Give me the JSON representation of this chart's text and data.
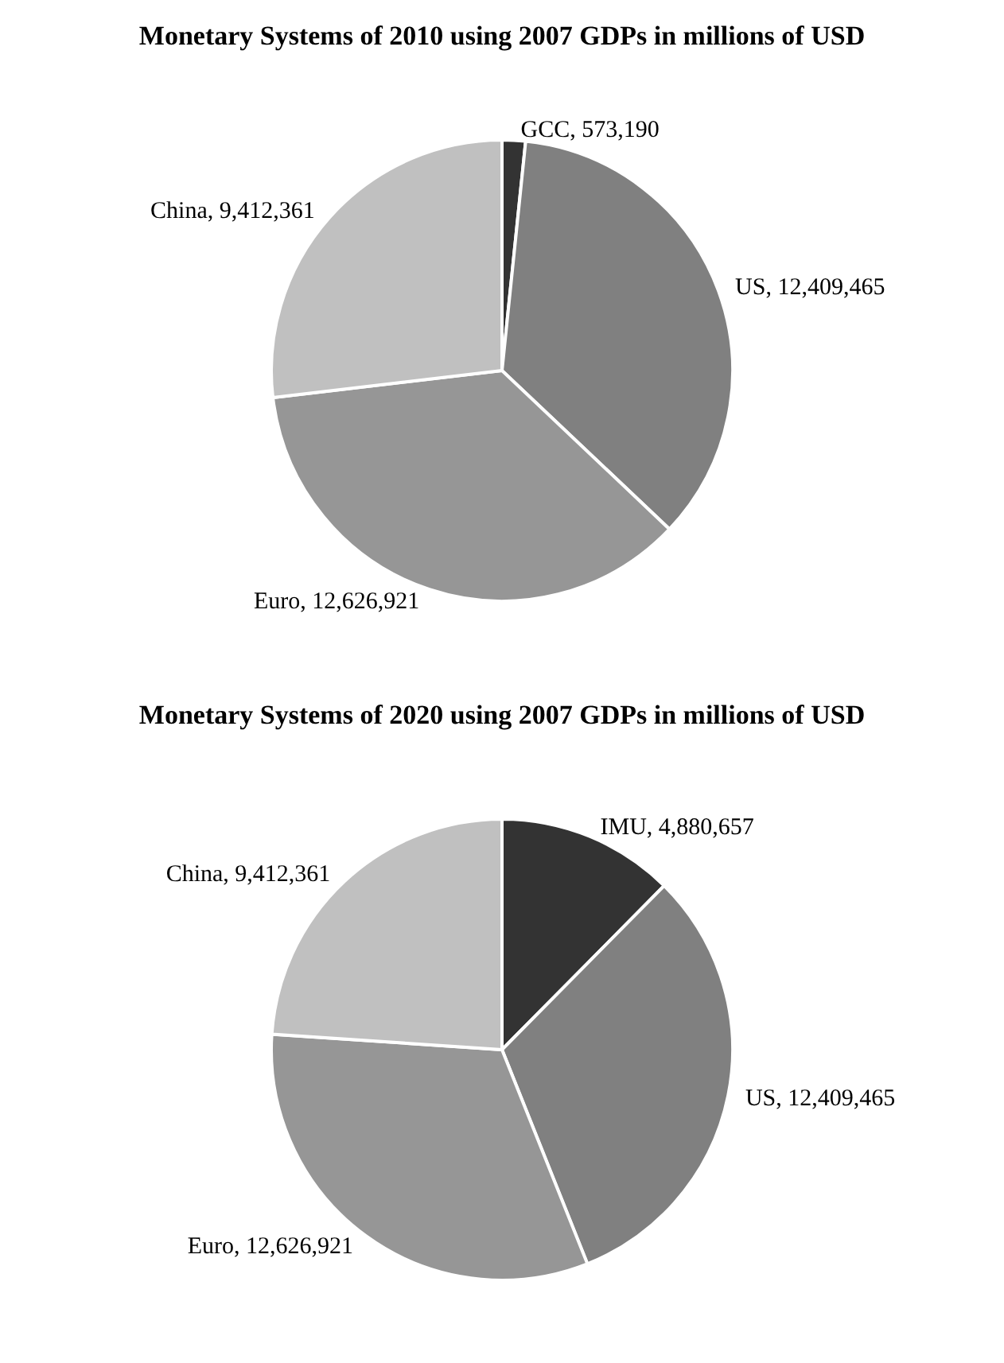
{
  "chart_data": [
    {
      "type": "pie",
      "title": "Monetary Systems of 2010 using 2007 GDPs in millions of USD",
      "categories": [
        "GCC",
        "US",
        "Euro",
        "China"
      ],
      "values": [
        573190,
        12409465,
        12626921,
        9412361
      ],
      "colors": [
        "#333333",
        "#808080",
        "#969696",
        "#c0c0c0"
      ],
      "value_labels": [
        "573,190",
        "12,409,465",
        "12,626,921",
        "9,412,361"
      ],
      "legend": false
    },
    {
      "type": "pie",
      "title": "Monetary Systems of 2020 using 2007 GDPs in millions of USD",
      "categories": [
        "IMU",
        "US",
        "Euro",
        "China"
      ],
      "values": [
        4880657,
        12409465,
        12626921,
        9412361
      ],
      "colors": [
        "#333333",
        "#808080",
        "#969696",
        "#c0c0c0"
      ],
      "value_labels": [
        "4,880,657",
        "12,409,465",
        "12,626,921",
        "9,412,361"
      ],
      "legend": false
    }
  ]
}
